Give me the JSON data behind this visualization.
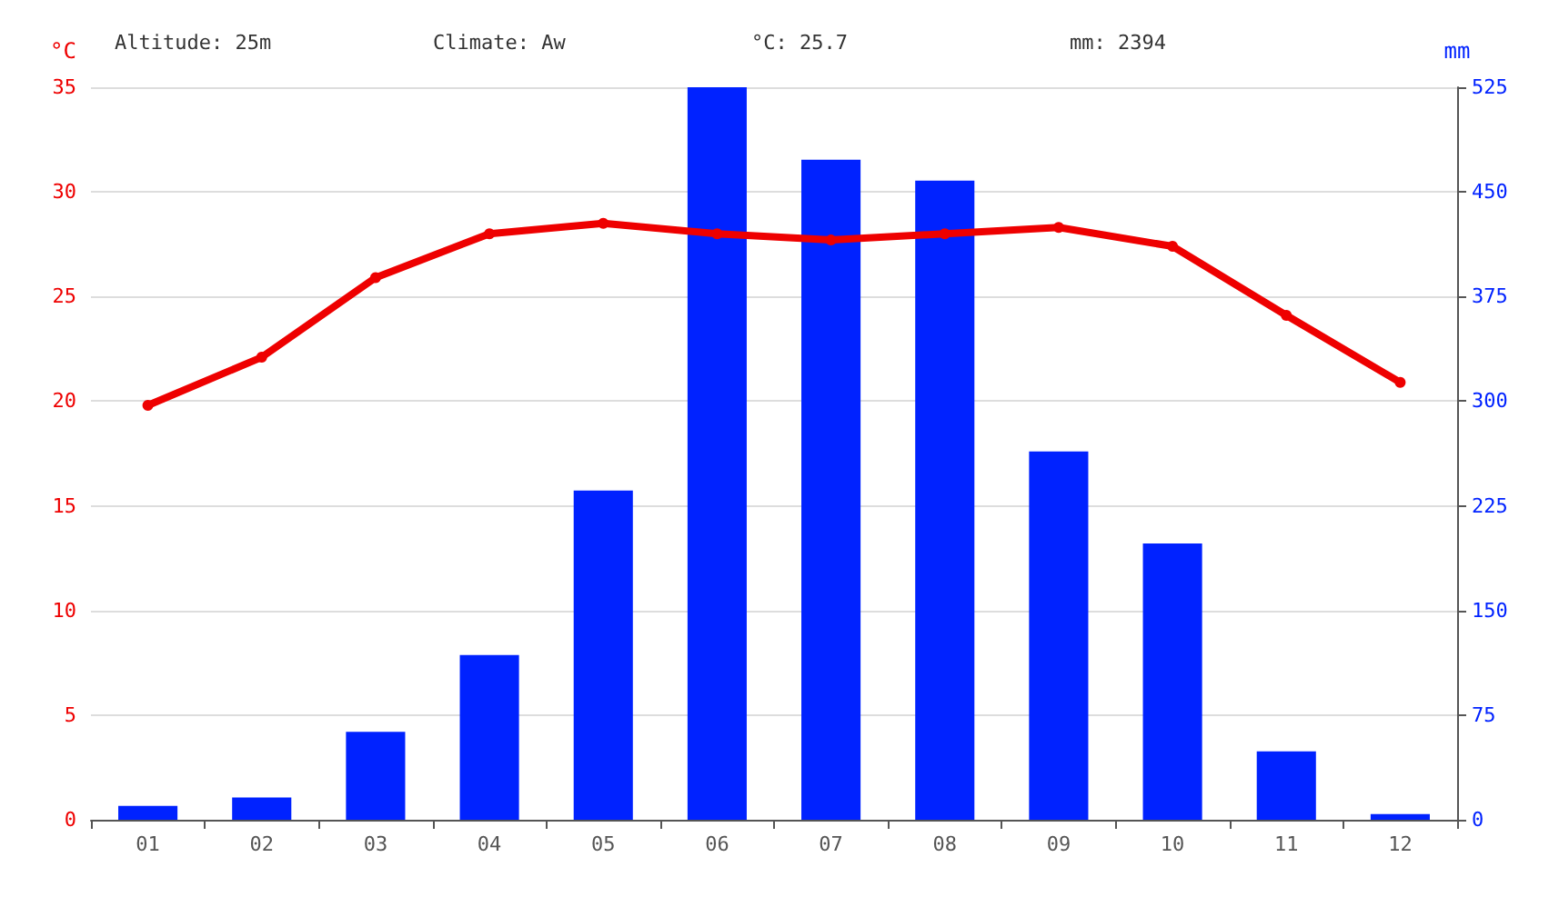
{
  "chart_data": {
    "type": "bar",
    "ylabel": "°C",
    "y2label": "mm",
    "annotations": [
      "Altitude: 25m",
      "Climate: Aw",
      "°C: 25.7",
      "mm: 2394"
    ],
    "categories": [
      "01",
      "02",
      "03",
      "04",
      "05",
      "06",
      "07",
      "08",
      "09",
      "10",
      "11",
      "12"
    ],
    "series": [
      {
        "axis": "y2",
        "color": "#0022ff",
        "values": [
          10,
          16,
          63,
          118,
          236,
          525,
          473,
          458,
          264,
          198,
          49,
          4
        ]
      },
      {
        "type": "line",
        "axis": "y",
        "color": "#ee0000",
        "marker": "circle",
        "values": [
          19.8,
          22.1,
          25.9,
          28.0,
          28.5,
          28.0,
          27.7,
          28.0,
          28.3,
          27.4,
          24.1,
          20.9
        ]
      }
    ],
    "ylim": [
      0,
      35
    ],
    "yticks": [
      0,
      5,
      10,
      15,
      20,
      25,
      30,
      35
    ],
    "y2lim": [
      0,
      525
    ],
    "y2ticks": [
      0,
      75,
      150,
      225,
      300,
      375,
      450,
      525
    ],
    "grid": "y"
  }
}
